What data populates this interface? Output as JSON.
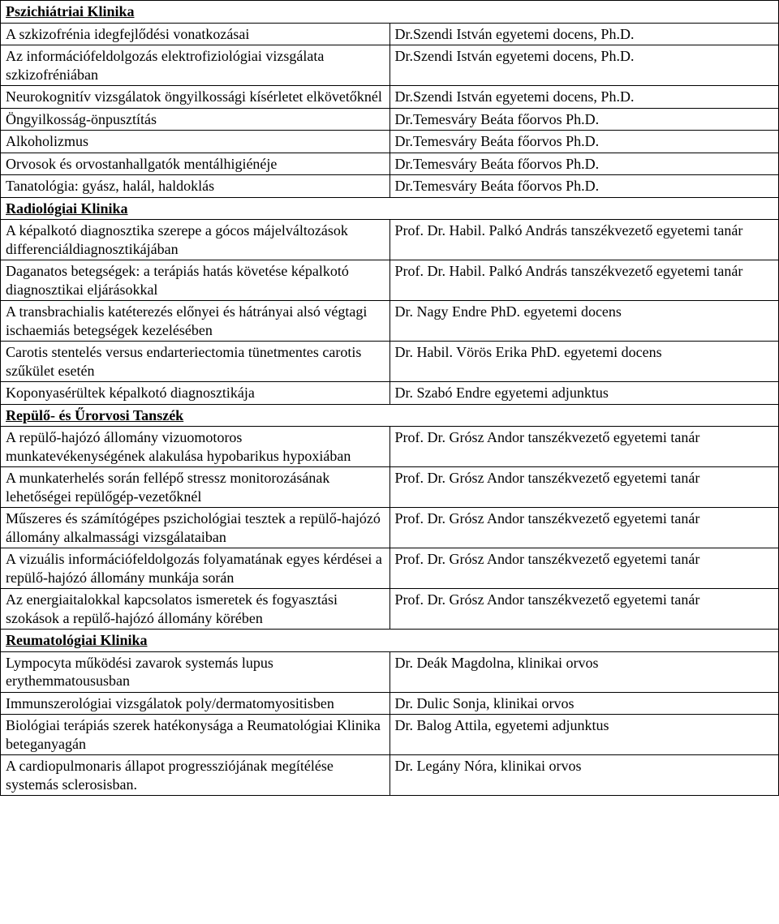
{
  "sections": [
    {
      "title": "Pszichiátriai Klinika",
      "rows": [
        {
          "left": "A szkizofrénia idegfejlődési vonatkozásai",
          "right": "Dr.Szendi István egyetemi docens, Ph.D."
        },
        {
          "left": "Az információfeldolgozás elektrofiziológiai vizsgálata szkizofréniában",
          "right": "Dr.Szendi István egyetemi docens, Ph.D."
        },
        {
          "left": "Neurokognitív vizsgálatok öngyilkossági kísérletet elkövetőknél",
          "right": "Dr.Szendi István egyetemi docens, Ph.D."
        },
        {
          "left": "Öngyilkosság-önpusztítás",
          "right": "Dr.Temesváry Beáta főorvos Ph.D."
        },
        {
          "left": "Alkoholizmus",
          "right": "Dr.Temesváry Beáta főorvos Ph.D."
        },
        {
          "left": "Orvosok és orvostanhallgatók mentálhigiénéje",
          "right": "Dr.Temesváry Beáta főorvos Ph.D."
        },
        {
          "left": "Tanatológia: gyász, halál, haldoklás",
          "right": "Dr.Temesváry Beáta főorvos Ph.D."
        }
      ]
    },
    {
      "title": "Radiológiai Klinika",
      "rows": [
        {
          "left": "A képalkotó diagnosztika szerepe a gócos májelváltozások differenciáldiagnosztikájában",
          "right": "Prof. Dr. Habil. Palkó András tanszékvezető egyetemi tanár"
        },
        {
          "left": "Daganatos betegségek: a terápiás hatás követése képalkotó diagnosztikai eljárásokkal",
          "right": "Prof. Dr. Habil. Palkó András tanszékvezető egyetemi tanár"
        },
        {
          "left": "A transbrachialis katéterezés előnyei és hátrányai alsó végtagi ischaemiás betegségek kezelésében",
          "right": "Dr. Nagy Endre PhD. egyetemi docens"
        },
        {
          "left": "Carotis stentelés versus endarteriectomia tünetmentes carotis szűkület esetén",
          "right": "Dr. Habil. Vörös Erika PhD. egyetemi docens"
        },
        {
          "left": "Koponyasérültek képalkotó diagnosztikája",
          "right": "Dr. Szabó Endre egyetemi adjunktus"
        }
      ]
    },
    {
      "title": "Repülő- és Űrorvosi Tanszék",
      "rows": [
        {
          "left": "A repülő-hajózó állomány vizuomotoros munkatevékenységének alakulása hypobarikus hypoxiában",
          "right": "Prof. Dr. Grósz Andor tanszékvezető egyetemi tanár"
        },
        {
          "left": "A munkaterhelés során fellépő stressz monitorozásának lehetőségei repülőgép-vezetőknél",
          "right": "Prof. Dr. Grósz Andor tanszékvezető egyetemi tanár"
        },
        {
          "left": "Műszeres és számítógépes pszichológiai tesztek a repülő-hajózó állomány alkalmassági vizsgálataiban",
          "right": "Prof. Dr. Grósz Andor tanszékvezető egyetemi tanár"
        },
        {
          "left": "A vizuális információfeldolgozás folyamatának egyes kérdései a repülő-hajózó állomány munkája során",
          "right": "Prof. Dr. Grósz Andor tanszékvezető egyetemi tanár"
        },
        {
          "left": "Az energiaitalokkal kapcsolatos ismeretek és fogyasztási szokások a repülő-hajózó állomány körében",
          "right": "Prof. Dr. Grósz Andor tanszékvezető egyetemi tanár"
        }
      ]
    },
    {
      "title": "Reumatológiai Klinika",
      "rows": [
        {
          "left": "Lympocyta működési zavarok systemás lupus erythemmatoususban",
          "right": "Dr. Deák Magdolna, klinikai orvos"
        },
        {
          "left": "Immunszerológiai vizsgálatok poly/dermatomyositisben",
          "right": "Dr. Dulic Sonja, klinikai orvos"
        },
        {
          "left": "Biológiai terápiás szerek hatékonysága a Reumatológiai Klinika beteganyagán",
          "right": "Dr. Balog Attila, egyetemi adjunktus"
        },
        {
          "left": "A cardiopulmonaris állapot progressziójának megítélése systemás sclerosisban.",
          "right": "Dr. Legány Nóra, klinikai orvos"
        }
      ]
    }
  ]
}
